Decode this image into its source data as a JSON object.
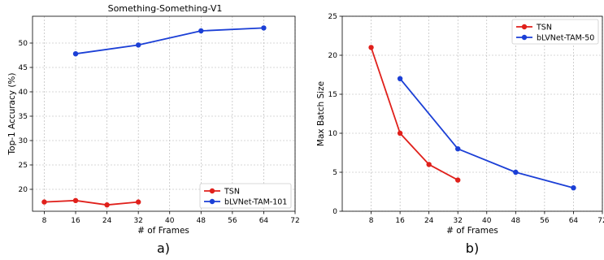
{
  "chart_data": [
    {
      "type": "line",
      "title": "Something-Something-V1",
      "xlabel": "# of Frames",
      "ylabel": "Top-1 Accuracy (%)",
      "xticks": [
        8,
        16,
        24,
        32,
        40,
        48,
        56,
        64,
        72
      ],
      "yticks": [
        20,
        25,
        30,
        35,
        40,
        45,
        50
      ],
      "xlim": [
        5,
        72
      ],
      "ylim": [
        15.5,
        55.5
      ],
      "grid": true,
      "legend_position": "bottom-right",
      "subplot_label": "a)",
      "series": [
        {
          "name": "TSN",
          "color": "#e0201b",
          "x": [
            8,
            16,
            24,
            32
          ],
          "y": [
            17.4,
            17.7,
            16.8,
            17.4
          ]
        },
        {
          "name": "bLVNet-TAM-101",
          "color": "#1b3fd6",
          "x": [
            16,
            32,
            48,
            64
          ],
          "y": [
            47.8,
            49.6,
            52.5,
            53.1
          ]
        }
      ]
    },
    {
      "type": "line",
      "title": "",
      "xlabel": "# of Frames",
      "ylabel": "Max Batch Size",
      "xticks": [
        8,
        16,
        24,
        32,
        40,
        48,
        56,
        64,
        72
      ],
      "yticks": [
        0,
        5,
        10,
        15,
        20,
        25
      ],
      "xlim": [
        0,
        72
      ],
      "ylim": [
        0,
        25
      ],
      "grid": true,
      "legend_position": "top-right",
      "subplot_label": "b)",
      "series": [
        {
          "name": "TSN",
          "color": "#e0201b",
          "x": [
            8,
            16,
            24,
            32
          ],
          "y": [
            21,
            10,
            6,
            4
          ]
        },
        {
          "name": "bLVNet-TAM-50",
          "color": "#1b3fd6",
          "x": [
            16,
            32,
            48,
            64
          ],
          "y": [
            17,
            8,
            5,
            3
          ]
        }
      ]
    }
  ]
}
